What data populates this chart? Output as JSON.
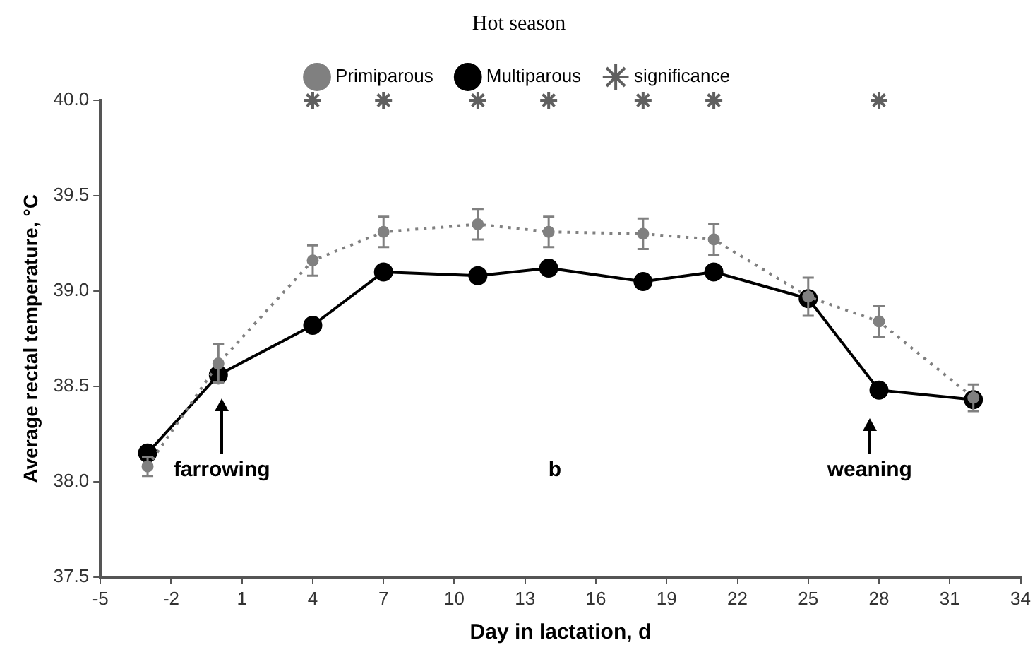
{
  "chart_data": {
    "type": "line",
    "title": "Hot season",
    "xlabel": "Day in lactation, d",
    "ylabel": "Average rectal temperature, °C",
    "x": [
      -3,
      0,
      4,
      7,
      11,
      14,
      18,
      21,
      25,
      28,
      32
    ],
    "series": [
      {
        "name": "Primiparous",
        "color": "#808080",
        "marker": "circle",
        "line_style": "dotted",
        "values": [
          38.08,
          38.62,
          39.16,
          39.31,
          39.35,
          39.31,
          39.3,
          39.27,
          38.97,
          38.84,
          38.44
        ],
        "errors": [
          0.05,
          0.1,
          0.08,
          0.08,
          0.08,
          0.08,
          0.08,
          0.08,
          0.1,
          0.08,
          0.07
        ]
      },
      {
        "name": "Multiparous",
        "color": "#000000",
        "marker": "circle",
        "line_style": "solid",
        "values": [
          38.15,
          38.56,
          38.82,
          39.1,
          39.08,
          39.12,
          39.05,
          39.1,
          38.96,
          38.48,
          38.43
        ]
      },
      {
        "name": "significance",
        "type": "scatter",
        "color": "#606060",
        "marker": "cross",
        "x": [
          4,
          7,
          11,
          14,
          18,
          21,
          28
        ],
        "values": [
          40,
          40,
          40,
          40,
          40,
          40,
          40
        ]
      }
    ],
    "xlim": [
      -5,
      34
    ],
    "xticks": [
      -5,
      -2,
      1,
      4,
      7,
      10,
      13,
      16,
      19,
      22,
      25,
      28,
      31,
      34
    ],
    "ylim": [
      37.5,
      40
    ],
    "yticks": [
      {
        "value": 37.5,
        "label": "37.5"
      },
      {
        "value": 38,
        "label": "38.0"
      },
      {
        "value": 38.5,
        "label": "38.5"
      },
      {
        "value": 39,
        "label": "39.0"
      },
      {
        "value": 39.5,
        "label": "39.5"
      },
      {
        "value": 40,
        "label": "40.0"
      }
    ],
    "annotations": [
      "farrowing",
      "b",
      "weaning"
    ],
    "grid": false,
    "legend": "top"
  }
}
